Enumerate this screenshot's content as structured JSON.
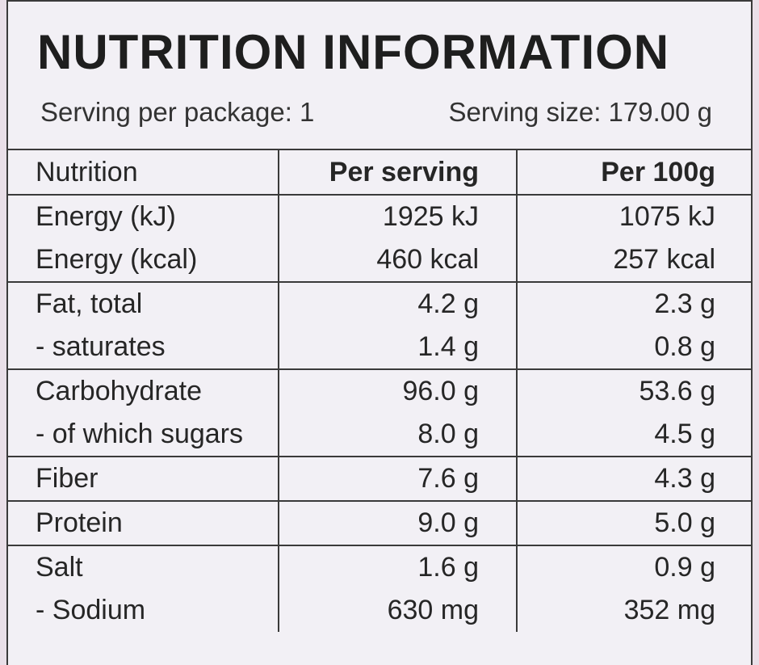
{
  "header": {
    "title": "NUTRITION INFORMATION",
    "servings_per_package": "Serving per package: 1",
    "serving_size": "Serving size: 179.00 g"
  },
  "table": {
    "columns": [
      "Nutrition",
      "Per serving",
      "Per 100g"
    ],
    "groups": [
      {
        "rows": [
          [
            "Energy (kJ)",
            "1925 kJ",
            "1075 kJ"
          ],
          [
            "Energy (kcal)",
            "460 kcal",
            "257 kcal"
          ]
        ]
      },
      {
        "rows": [
          [
            "Fat, total",
            "4.2 g",
            "2.3 g"
          ],
          [
            "- saturates",
            "1.4 g",
            "0.8 g"
          ]
        ]
      },
      {
        "rows": [
          [
            "Carbohydrate",
            "96.0 g",
            "53.6 g"
          ],
          [
            "- of which sugars",
            "8.0 g",
            "4.5 g"
          ]
        ]
      },
      {
        "rows": [
          [
            "Fiber",
            "7.6 g",
            "4.3 g"
          ]
        ]
      },
      {
        "rows": [
          [
            "Protein",
            "9.0 g",
            "5.0 g"
          ]
        ]
      },
      {
        "rows": [
          [
            "Salt",
            "1.6 g",
            "0.9 g"
          ],
          [
            "- Sodium",
            "630 mg",
            "352 mg"
          ]
        ]
      }
    ]
  }
}
